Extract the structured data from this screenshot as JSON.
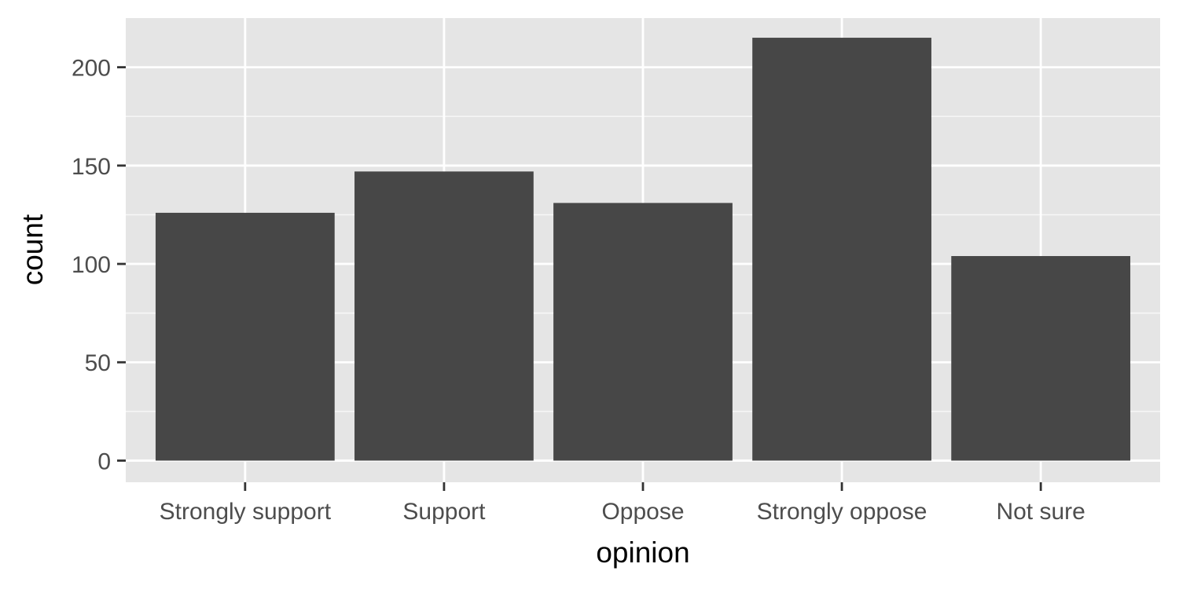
{
  "chart_data": {
    "type": "bar",
    "title": "",
    "xlabel": "opinion",
    "ylabel": "count",
    "categories": [
      "Strongly support",
      "Support",
      "Oppose",
      "Strongly oppose",
      "Not sure"
    ],
    "values": [
      126,
      147,
      131,
      215,
      104
    ],
    "ylim": [
      -11,
      225
    ],
    "y_ticks": [
      0,
      50,
      100,
      150,
      200
    ],
    "y_tick_labels": [
      "0",
      "50",
      "100",
      "150",
      "200"
    ],
    "grid": true,
    "legend": "none",
    "colors": {
      "panel_background": "#e5e5e5",
      "grid": "#ffffff",
      "bar": "#474747",
      "tick_label": "#4d4d4d",
      "tick_mark": "#333333",
      "axis_title": "#000000"
    }
  }
}
